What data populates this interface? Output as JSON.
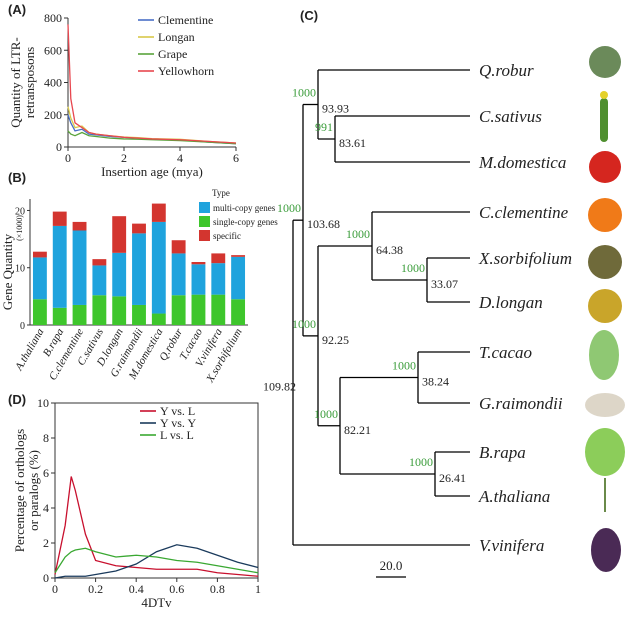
{
  "chart_data": [
    {
      "type": "line",
      "label": "(A)",
      "y_label": [
        "Quantity of LTR-",
        "retransposons"
      ],
      "x_label": "Insertion age (mya)",
      "x": [
        0,
        0.1,
        0.25,
        0.5,
        0.75,
        1,
        1.5,
        2,
        2.5,
        3,
        4,
        5,
        6
      ],
      "xlim": [
        0,
        6
      ],
      "xticks": [
        0,
        2,
        4,
        6
      ],
      "ylim": [
        0,
        800
      ],
      "yticks": [
        0,
        200,
        400,
        600,
        800
      ],
      "series": [
        {
          "name": "Clementine",
          "color": "#4a6fc7",
          "values": [
            200,
            150,
            100,
            110,
            80,
            75,
            65,
            60,
            55,
            50,
            45,
            30,
            20
          ]
        },
        {
          "name": "Longan",
          "color": "#d8c84a",
          "values": [
            250,
            180,
            120,
            130,
            90,
            80,
            70,
            62,
            58,
            52,
            48,
            35,
            25
          ]
        },
        {
          "name": "Grape",
          "color": "#5aa33c",
          "values": [
            100,
            80,
            70,
            90,
            70,
            65,
            55,
            50,
            48,
            45,
            40,
            30,
            20
          ]
        },
        {
          "name": "Yellowhorn",
          "color": "#e8474f",
          "values": [
            760,
            300,
            150,
            120,
            90,
            80,
            70,
            60,
            55,
            50,
            45,
            35,
            25
          ]
        }
      ]
    },
    {
      "type": "bar",
      "label": "(B)",
      "y_label": "Gene Quantity",
      "y_unit": "(×1000)",
      "legend_title": "Type",
      "categories": [
        "A.thaliana",
        "B.rapa",
        "C.clementine",
        "C.sativus",
        "D.longan",
        "G.raimondii",
        "M.domestica",
        "Q.robur",
        "T.cacao",
        "V.vinifera",
        "X.sorbifolium"
      ],
      "ylim": [
        0,
        22
      ],
      "yticks": [
        0,
        10,
        20
      ],
      "series": [
        {
          "name": "multi-copy genes",
          "color": "#1fa3dd",
          "values": [
            7.3,
            14.3,
            13,
            5.2,
            7.6,
            12.5,
            16,
            7.3,
            5.3,
            5.5,
            7.4
          ]
        },
        {
          "name": "single-copy genes",
          "color": "#3ec62c",
          "values": [
            4.5,
            3,
            3.5,
            5.2,
            5,
            3.5,
            2,
            5.2,
            5.3,
            5.3,
            4.5
          ]
        },
        {
          "name": "specific",
          "color": "#d3352f",
          "values": [
            1,
            2.5,
            1.5,
            1.1,
            6.4,
            1.7,
            3.2,
            2.3,
            0.4,
            1.7,
            0.3
          ]
        }
      ]
    },
    {
      "type": "line",
      "label": "(D)",
      "y_label": [
        "Percentage of orthologs",
        "or paralogs (%)"
      ],
      "x_label": "4DTv",
      "x": [
        0,
        0.05,
        0.08,
        0.1,
        0.15,
        0.2,
        0.3,
        0.4,
        0.5,
        0.6,
        0.7,
        0.8,
        0.9,
        1
      ],
      "xlim": [
        0,
        1
      ],
      "xticks": [
        0,
        0.2,
        0.4,
        0.6,
        0.8,
        1
      ],
      "ylim": [
        0,
        10
      ],
      "yticks": [
        0,
        2,
        4,
        6,
        8,
        10
      ],
      "series": [
        {
          "name": "Y vs. L",
          "color": "#c8102e",
          "values": [
            0.2,
            3,
            5.8,
            5,
            2.5,
            1.0,
            0.7,
            0.6,
            0.5,
            0.5,
            0.5,
            0.3,
            0.2,
            0.1
          ]
        },
        {
          "name": "Y vs. Y",
          "color": "#1a3a5c",
          "values": [
            0,
            0.1,
            0.1,
            0.1,
            0.1,
            0.2,
            0.4,
            0.8,
            1.5,
            1.9,
            1.7,
            1.3,
            0.9,
            0.6
          ]
        },
        {
          "name": "L vs. L",
          "color": "#3aa832",
          "values": [
            0.3,
            1.2,
            1.5,
            1.6,
            1.7,
            1.5,
            1.2,
            1.3,
            1.2,
            1.0,
            0.9,
            0.7,
            0.5,
            0.3
          ]
        }
      ]
    }
  ],
  "tree": {
    "label": "(C)",
    "leaves": [
      "Q.robur",
      "C.sativus",
      "M.domestica",
      "C.clementine",
      "X.sorbifolium",
      "D.longan",
      "T.cacao",
      "G.raimondii",
      "B.rapa",
      "A.thaliana",
      "V.vinifera"
    ],
    "nodes": [
      {
        "age": "93.93",
        "support": "1000"
      },
      {
        "age": "83.61",
        "support": "991"
      },
      {
        "age": "103.68",
        "support": "1000"
      },
      {
        "age": "64.38",
        "support": "1000"
      },
      {
        "age": "33.07",
        "support": "1000"
      },
      {
        "age": "92.25",
        "support": "1000"
      },
      {
        "age": "38.24",
        "support": "1000"
      },
      {
        "age": "82.21",
        "support": "1000"
      },
      {
        "age": "26.41",
        "support": "1000"
      },
      {
        "age": "109.82"
      }
    ],
    "scale": "20.0"
  }
}
